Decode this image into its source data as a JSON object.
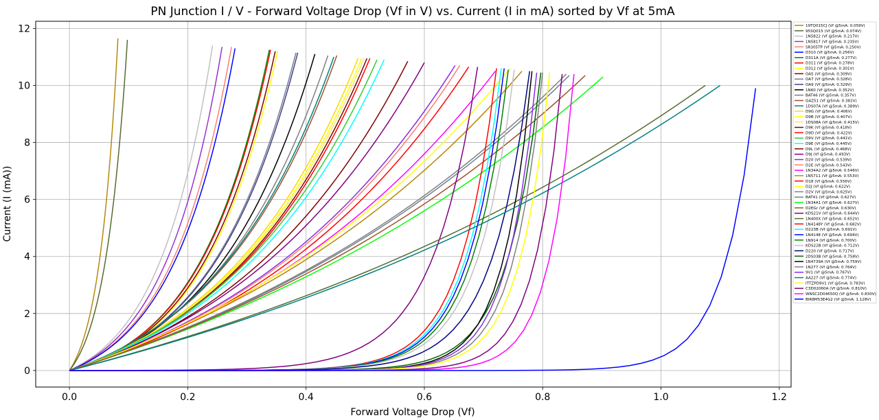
{
  "chart_data": {
    "type": "line",
    "title": "PN Junction I / V - Forward Voltage Drop (Vf in V) vs. Current (I in mA) sorted by Vf at 5mA",
    "xlabel": "Forward Voltage Drop (Vf)",
    "ylabel": "Current (I (mA))",
    "xlim": [
      -0.057,
      1.22
    ],
    "ylim": [
      -0.58,
      12.25
    ],
    "xticks": [
      "0.0",
      "0.2",
      "0.4",
      "0.6",
      "0.8",
      "1.0",
      "1.2"
    ],
    "yticks": [
      "0",
      "2",
      "4",
      "6",
      "8",
      "10",
      "12"
    ],
    "grid": true,
    "legend_position": "right",
    "series": [
      {
        "name": "19TQ015CJ (Vf @5mA: 0.059V)",
        "color": "#b8860b",
        "vmax": 0.082,
        "imax": 11.65,
        "k": 2.5
      },
      {
        "name": "95SQ015 (Vf @5mA: 0.074V)",
        "color": "#556b2f",
        "vmax": 0.098,
        "imax": 11.6,
        "k": 2.5
      },
      {
        "name": "1N5822 (Vf @5mA: 0.217V)",
        "color": "#c0c0c0",
        "vmax": 0.242,
        "imax": 11.4,
        "k": 2.6
      },
      {
        "name": "1N5817 (Vf @5mA: 0.235V)",
        "color": "#9932cc",
        "vmax": 0.258,
        "imax": 11.35,
        "k": 2.6
      },
      {
        "name": "SR305TP (Vf @5mA: 0.250V)",
        "color": "#fa8072",
        "vmax": 0.274,
        "imax": 11.35,
        "k": 2.6
      },
      {
        "name": "D310 (Vf @5mA: 0.256V)",
        "color": "#0000ff",
        "vmax": 0.28,
        "imax": 11.3,
        "k": 2.6
      },
      {
        "name": "D311A (Vf @5mA: 0.277V)",
        "color": "#008000",
        "vmax": 0.338,
        "imax": 11.25,
        "k": 2.8
      },
      {
        "name": "D311 (Vf @5mA: 0.278V)",
        "color": "#ff0000",
        "vmax": 0.34,
        "imax": 11.25,
        "k": 2.8
      },
      {
        "name": "D312 (Vf @5mA: 0.301V)",
        "color": "#ffff00",
        "vmax": 0.352,
        "imax": 11.2,
        "k": 2.8
      },
      {
        "name": "OA5 (Vf @5mA: 0.309V)",
        "color": "#800000",
        "vmax": 0.348,
        "imax": 11.2,
        "k": 2.8
      },
      {
        "name": "OA7 (Vf @5mA: 0.328V)",
        "color": "#708090",
        "vmax": 0.383,
        "imax": 11.15,
        "k": 2.6
      },
      {
        "name": "OA9 (Vf @5mA: 0.329V)",
        "color": "#483d8b",
        "vmax": 0.386,
        "imax": 11.15,
        "k": 2.6
      },
      {
        "name": "1N60 (Vf @5mA: 0.352V)",
        "color": "#000000",
        "vmax": 0.415,
        "imax": 11.1,
        "k": 2.4
      },
      {
        "name": "BAT46 (Vf @5mA: 0.357V)",
        "color": "#808080",
        "vmax": 0.437,
        "imax": 11.05,
        "k": 2.2
      },
      {
        "name": "GAZ51 (Vf @5mA: 0.382V)",
        "color": "#a0522d",
        "vmax": 0.452,
        "imax": 11.05,
        "k": 2.1
      },
      {
        "name": "1DS07A (Vf @5mA: 0.389V)",
        "color": "#008080",
        "vmax": 0.447,
        "imax": 11.0,
        "k": 2.1
      },
      {
        "name": "D9G (Vf @5mA: 0.406V)",
        "color": "#ffd700",
        "vmax": 0.488,
        "imax": 10.95,
        "k": 2.0
      },
      {
        "name": "D9B (Vf @5mA: 0.407V)",
        "color": "#ffff00",
        "vmax": 0.494,
        "imax": 10.95,
        "k": 2.0
      },
      {
        "name": "1DS08A (Vf @5mA: 0.415V)",
        "color": "#f0e68c",
        "vmax": 0.498,
        "imax": 10.95,
        "k": 2.0
      },
      {
        "name": "D9K (Vf @5mA: 0.418V)",
        "color": "#800000",
        "vmax": 0.503,
        "imax": 10.95,
        "k": 2.0
      },
      {
        "name": "D9D (Vf @5mA: 0.422V)",
        "color": "#ff0000",
        "vmax": 0.508,
        "imax": 10.95,
        "k": 2.0
      },
      {
        "name": "D9V (Vf @5mA: 0.441V)",
        "color": "#32cd32",
        "vmax": 0.52,
        "imax": 10.9,
        "k": 1.9
      },
      {
        "name": "D9E (Vf @5mA: 0.445V)",
        "color": "#00ffff",
        "vmax": 0.532,
        "imax": 10.9,
        "k": 1.9
      },
      {
        "name": "D9L (Vf @5mA: 0.468V)",
        "color": "#800000",
        "vmax": 0.572,
        "imax": 10.85,
        "k": 1.8
      },
      {
        "name": "D9J (Vf @5mA: 0.493V)",
        "color": "#800080",
        "vmax": 0.6,
        "imax": 10.8,
        "k": 1.7
      },
      {
        "name": "D20 (Vf @5mA: 0.539V)",
        "color": "#8a2be2",
        "vmax": 0.652,
        "imax": 10.7,
        "k": 1.6
      },
      {
        "name": "D2E (Vf @5mA: 0.543V)",
        "color": "#fa8072",
        "vmax": 0.66,
        "imax": 10.7,
        "k": 1.6
      },
      {
        "name": "1N34A2 (Vf @5mA: 0.546V)",
        "color": "#ff00ff",
        "vmax": 0.72,
        "imax": 10.5,
        "k": 1.4
      },
      {
        "name": "1N5711 (Vf @5mA: 0.553V)",
        "color": "#b8860b",
        "vmax": 0.765,
        "imax": 10.5,
        "k": 1.25
      },
      {
        "name": "D18 (Vf @5mA: 0.556V)",
        "color": "#ff0000",
        "vmax": 0.675,
        "imax": 10.65,
        "k": 1.6
      },
      {
        "name": "D2J (Vf @5mA: 0.622V)",
        "color": "#ffff00",
        "vmax": 0.745,
        "imax": 10.6,
        "k": 1.3
      },
      {
        "name": "D2V (Vf @5mA: 0.625V)",
        "color": "#808080",
        "vmax": 0.84,
        "imax": 10.4,
        "k": 1.15
      },
      {
        "name": "BAT41 (Vf @5mA: 0.627V)",
        "color": "#708090",
        "vmax": 0.845,
        "imax": 10.35,
        "k": 1.15
      },
      {
        "name": "1N34A1 (Vf @5mA: 0.627V)",
        "color": "#00ff00",
        "vmax": 0.902,
        "imax": 10.3,
        "k": 1.05
      },
      {
        "name": "D2EGr (Vf @5mA: 0.630V)",
        "color": "#a0522d",
        "vmax": 0.872,
        "imax": 10.35,
        "k": 1.1
      },
      {
        "name": "KDS21V (Vf @5mA: 0.644V)",
        "color": "#800080",
        "vmax": 0.69,
        "imax": 10.65,
        "k": 9.0
      },
      {
        "name": "1N400X (Vf @5mA: 0.652V)",
        "color": "#556b2f",
        "vmax": 1.075,
        "imax": 10.0,
        "k": 1.0
      },
      {
        "name": "1N4148Y (Vf @5mA: 0.682V)",
        "color": "#ff0000",
        "vmax": 0.722,
        "imax": 10.6,
        "k": 12.0
      },
      {
        "name": "D223B (Vf @5mA: 0.691V)",
        "color": "#00ffff",
        "vmax": 0.73,
        "imax": 10.6,
        "k": 12.0
      },
      {
        "name": "1N4148 (Vf @5mA: 0.694V)",
        "color": "#0000ff",
        "vmax": 0.735,
        "imax": 10.6,
        "k": 12.0
      },
      {
        "name": "1N914 (Vf @5mA: 0.700V)",
        "color": "#008000",
        "vmax": 0.742,
        "imax": 10.55,
        "k": 12.0
      },
      {
        "name": "KDS22B (Vf @5mA: 0.712V)",
        "color": "#c0c0c0",
        "vmax": 0.752,
        "imax": 10.55,
        "k": 12.0
      },
      {
        "name": "D220 (Vf @5mA: 0.717V)",
        "color": "#000080",
        "vmax": 0.778,
        "imax": 10.5,
        "k": 12.0
      },
      {
        "name": "2D503B (Vf @5mA: 0.758V)",
        "color": "#006400",
        "vmax": 0.797,
        "imax": 10.45,
        "k": 14.0
      },
      {
        "name": "1N4739A (Vf @5mA: 0.759V)",
        "color": "#000000",
        "vmax": 0.782,
        "imax": 10.5,
        "k": 16.0
      },
      {
        "name": "1N277 (Vf @5mA: 0.764V)",
        "color": "#808080",
        "vmax": 0.8,
        "imax": 10.45,
        "k": 16.0
      },
      {
        "name": "9V1 (Vf @5mA: 0.767V)",
        "color": "#8a2be2",
        "vmax": 0.79,
        "imax": 10.45,
        "k": 16.0
      },
      {
        "name": "AA227 (Vf @5mA: 0.774V)",
        "color": "#008080",
        "vmax": 1.1,
        "imax": 10.0,
        "k": 1.0
      },
      {
        "name": "ITTZPD9V1 (Vf @5mA: 0.783V)",
        "color": "#ffff00",
        "vmax": 0.812,
        "imax": 10.45,
        "k": 16.0
      },
      {
        "name": "C3D02060A (Vf @5mA: 0.810V)",
        "color": "#800080",
        "vmax": 0.833,
        "imax": 10.4,
        "k": 18.0
      },
      {
        "name": "WNSC2D04650Q (Vf @5mA: 0.830V)",
        "color": "#ff00ff",
        "vmax": 0.853,
        "imax": 10.4,
        "k": 20.0
      },
      {
        "name": "BIR8M53E4G2 (Vf @5mA: 1.128V)",
        "color": "#0000ff",
        "vmax": 1.16,
        "imax": 9.9,
        "k": 22.0
      }
    ]
  }
}
